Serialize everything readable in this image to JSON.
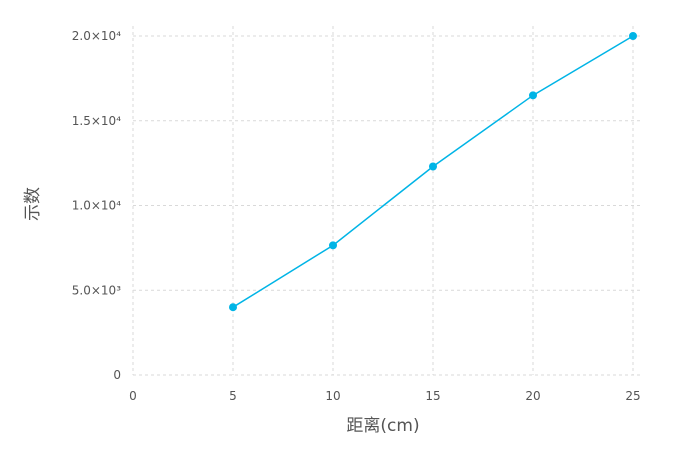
{
  "chart_data": {
    "type": "line",
    "title": "",
    "xlabel": "距离(cm)",
    "ylabel": "示数",
    "xlim": [
      0,
      25
    ],
    "ylim": [
      0,
      20000
    ],
    "grid": true,
    "legend": "none",
    "x": [
      5,
      10,
      15,
      20,
      25
    ],
    "series": [
      {
        "name": "示数",
        "color": "#00b4e6",
        "values": [
          4000,
          7650,
          12300,
          16500,
          20000
        ]
      }
    ],
    "x_ticks": [
      {
        "value": 0,
        "label": "0"
      },
      {
        "value": 5,
        "label": "5"
      },
      {
        "value": 10,
        "label": "10"
      },
      {
        "value": 15,
        "label": "15"
      },
      {
        "value": 20,
        "label": "20"
      },
      {
        "value": 25,
        "label": "25"
      }
    ],
    "y_ticks": [
      {
        "value": 0,
        "label": "0"
      },
      {
        "value": 5000,
        "label": "5.0×10³"
      },
      {
        "value": 10000,
        "label": "1.0×10⁴"
      },
      {
        "value": 15000,
        "label": "1.5×10⁴"
      },
      {
        "value": 20000,
        "label": "2.0×10⁴"
      }
    ]
  }
}
